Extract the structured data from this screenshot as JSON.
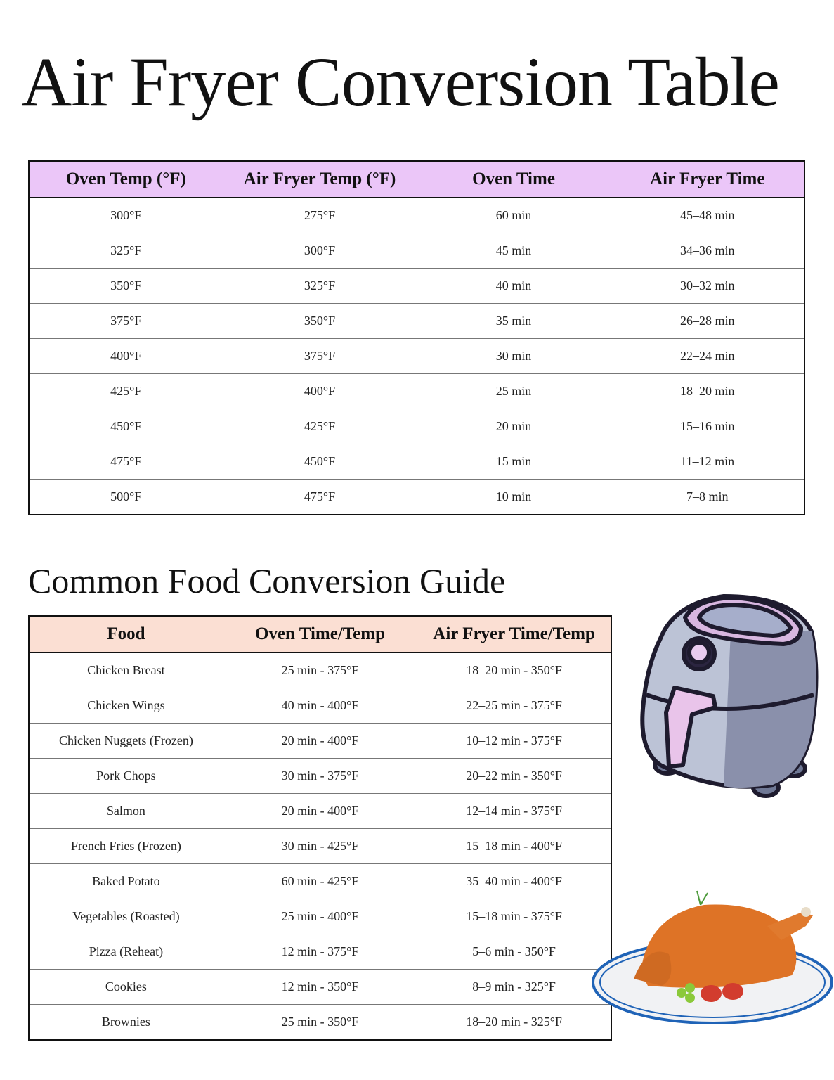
{
  "page": {
    "title": "Air Fryer Conversion Table",
    "subtitle": "Common Food Conversion Guide"
  },
  "conversion_table": {
    "header_color": "#ebc6f8",
    "headers": [
      "Oven Temp (°F)",
      "Air Fryer Temp (°F)",
      "Oven Time",
      "Air Fryer Time"
    ],
    "rows": [
      [
        "300°F",
        "275°F",
        "60 min",
        "45–48 min"
      ],
      [
        "325°F",
        "300°F",
        "45 min",
        "34–36 min"
      ],
      [
        "350°F",
        "325°F",
        "40 min",
        "30–32 min"
      ],
      [
        "375°F",
        "350°F",
        "35 min",
        "26–28 min"
      ],
      [
        "400°F",
        "375°F",
        "30 min",
        "22–24 min"
      ],
      [
        "425°F",
        "400°F",
        "25 min",
        "18–20 min"
      ],
      [
        "450°F",
        "425°F",
        "20 min",
        "15–16 min"
      ],
      [
        "475°F",
        "450°F",
        "15 min",
        "11–12 min"
      ],
      [
        "500°F",
        "475°F",
        "10 min",
        "7–8 min"
      ]
    ]
  },
  "food_table": {
    "header_color": "#fbdfd3",
    "headers": [
      "Food",
      "Oven Time/Temp",
      "Air Fryer Time/Temp"
    ],
    "rows": [
      [
        "Chicken Breast",
        "25 min - 375°F",
        "18–20 min - 350°F"
      ],
      [
        "Chicken Wings",
        "40 min - 400°F",
        "22–25 min - 375°F"
      ],
      [
        "Chicken Nuggets (Frozen)",
        "20 min - 400°F",
        "10–12 min - 375°F"
      ],
      [
        "Pork Chops",
        "30 min - 375°F",
        "20–22 min - 350°F"
      ],
      [
        "Salmon",
        "20 min - 400°F",
        "12–14 min - 375°F"
      ],
      [
        "French Fries (Frozen)",
        "30 min - 425°F",
        "15–18 min - 400°F"
      ],
      [
        "Baked Potato",
        "60 min - 425°F",
        "35–40 min - 400°F"
      ],
      [
        "Vegetables (Roasted)",
        "25 min - 400°F",
        "15–18 min - 375°F"
      ],
      [
        "Pizza (Reheat)",
        "12 min - 375°F",
        "5–6 min - 350°F"
      ],
      [
        "Cookies",
        "12 min - 350°F",
        "8–9 min - 325°F"
      ],
      [
        "Brownies",
        "25 min - 350°F",
        "18–20 min - 325°F"
      ]
    ]
  },
  "illustrations": {
    "fryer": "air-fryer-illustration",
    "plate": "roast-turkey-plate-illustration"
  }
}
